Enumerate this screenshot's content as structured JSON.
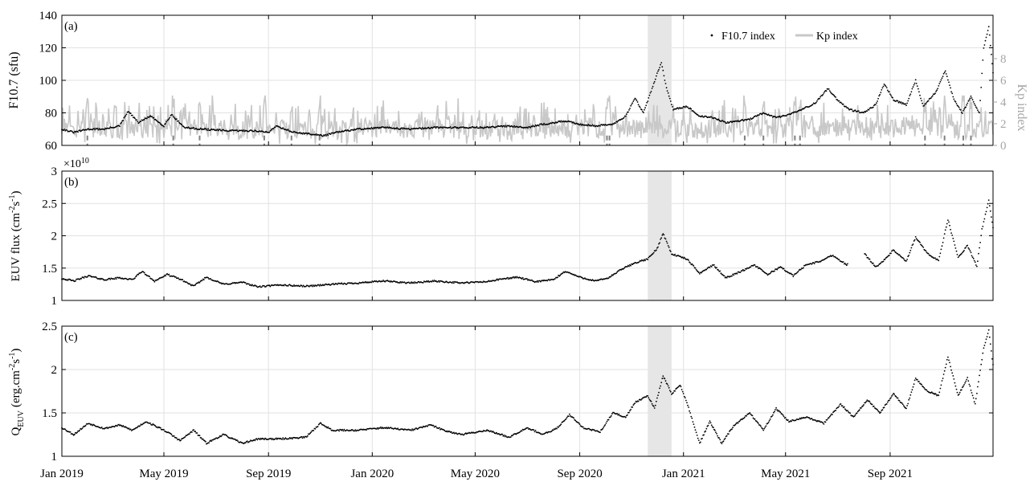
{
  "colors": {
    "marker": "#000000",
    "kp": "#c8c8c8",
    "kp_axis": "#a6a6a6",
    "event": "#808080",
    "shade": "#e6e6e6",
    "grid": "#e2e2e2"
  },
  "chart_data": [
    {
      "type": "scatter",
      "panel_label": "(a)",
      "ylabel": "F10.7 (sfu)",
      "ylabel_right": "Kp index",
      "ylim": [
        60,
        140
      ],
      "y_ticks": [
        60,
        80,
        100,
        120,
        140
      ],
      "ylim_right": [
        0,
        12
      ],
      "y_ticks_right": [
        0,
        2,
        4,
        6,
        8
      ],
      "x_range": [
        "2019-01-01",
        "2021-12-31"
      ],
      "grid": true,
      "legend_position": "top-right",
      "legend": [
        "F10.7 index",
        "Kp index"
      ],
      "shaded_interval": [
        "2020-11-20",
        "2020-12-18"
      ],
      "series": [
        {
          "name": "F10.7 index",
          "style": "dots",
          "points": [
            [
              "2019-01-01",
              70
            ],
            [
              "2019-01-15",
              68
            ],
            [
              "2019-02-01",
              70
            ],
            [
              "2019-02-20",
              70
            ],
            [
              "2019-03-10",
              72
            ],
            [
              "2019-03-20",
              81
            ],
            [
              "2019-04-01",
              74
            ],
            [
              "2019-04-15",
              78
            ],
            [
              "2019-05-01",
              72
            ],
            [
              "2019-05-10",
              79
            ],
            [
              "2019-05-25",
              71
            ],
            [
              "2019-06-15",
              70
            ],
            [
              "2019-07-15",
              69
            ],
            [
              "2019-08-15",
              69
            ],
            [
              "2019-09-01",
              68
            ],
            [
              "2019-09-10",
              72
            ],
            [
              "2019-10-01",
              68
            ],
            [
              "2019-10-20",
              67
            ],
            [
              "2019-11-05",
              66
            ],
            [
              "2019-11-20",
              68
            ],
            [
              "2019-12-15",
              70
            ],
            [
              "2020-01-15",
              71
            ],
            [
              "2020-02-15",
              70
            ],
            [
              "2020-03-15",
              71
            ],
            [
              "2020-04-15",
              71
            ],
            [
              "2020-05-15",
              71
            ],
            [
              "2020-06-10",
              72
            ],
            [
              "2020-07-01",
              71
            ],
            [
              "2020-07-20",
              73
            ],
            [
              "2020-08-15",
              75
            ],
            [
              "2020-09-01",
              73
            ],
            [
              "2020-09-20",
              72
            ],
            [
              "2020-10-10",
              73
            ],
            [
              "2020-10-25",
              78
            ],
            [
              "2020-11-05",
              89
            ],
            [
              "2020-11-15",
              80
            ],
            [
              "2020-11-25",
              95
            ],
            [
              "2020-12-01",
              104
            ],
            [
              "2020-12-06",
              111
            ],
            [
              "2020-12-12",
              95
            ],
            [
              "2020-12-20",
              82
            ],
            [
              "2021-01-05",
              84
            ],
            [
              "2021-01-20",
              78
            ],
            [
              "2021-02-05",
              77
            ],
            [
              "2021-02-20",
              74
            ],
            [
              "2021-03-05",
              75
            ],
            [
              "2021-03-20",
              76
            ],
            [
              "2021-04-05",
              80
            ],
            [
              "2021-04-20",
              77
            ],
            [
              "2021-05-05",
              79
            ],
            [
              "2021-05-20",
              82
            ],
            [
              "2021-06-05",
              86
            ],
            [
              "2021-06-20",
              95
            ],
            [
              "2021-07-01",
              88
            ],
            [
              "2021-07-15",
              82
            ],
            [
              "2021-08-01",
              80
            ],
            [
              "2021-08-15",
              85
            ],
            [
              "2021-08-25",
              98
            ],
            [
              "2021-09-05",
              88
            ],
            [
              "2021-09-20",
              85
            ],
            [
              "2021-10-01",
              100
            ],
            [
              "2021-10-10",
              84
            ],
            [
              "2021-10-25",
              93
            ],
            [
              "2021-11-05",
              106
            ],
            [
              "2021-11-15",
              88
            ],
            [
              "2021-11-25",
              80
            ],
            [
              "2021-12-05",
              90
            ],
            [
              "2021-12-15",
              80
            ],
            [
              "2021-12-20",
              120
            ],
            [
              "2021-12-26",
              133
            ],
            [
              "2021-12-31",
              105
            ]
          ]
        },
        {
          "name": "Kp index",
          "style": "line",
          "axis": "right",
          "baseline": 1.2,
          "amplitude": 1.3,
          "events": [
            "2019-01-31",
            "2019-05-12",
            "2019-06-12",
            "2019-08-27",
            "2019-09-28",
            "2019-10-31",
            "2020-10-03",
            "2020-10-06",
            "2021-03-14",
            "2021-04-05",
            "2021-05-12",
            "2021-05-18",
            "2021-10-12",
            "2021-11-04",
            "2021-11-26",
            "2021-12-05"
          ]
        }
      ]
    },
    {
      "type": "scatter",
      "panel_label": "(b)",
      "ylabel": "EUV flux (cm",
      "ylabel_exponents": [
        "-2",
        "-1"
      ],
      "ylabel_units": [
        "s",
        ")"
      ],
      "multiplier_base": "×10",
      "multiplier_exponent": "10",
      "ylim": [
        1,
        3
      ],
      "y_ticks": [
        1,
        1.5,
        2,
        2.5,
        3
      ],
      "x_range": [
        "2019-01-01",
        "2021-12-31"
      ],
      "grid": true,
      "shaded_interval": [
        "2020-11-20",
        "2020-12-18"
      ],
      "gap": [
        "2021-07-13",
        "2021-08-02"
      ],
      "series": [
        {
          "name": "EUV flux",
          "style": "dots",
          "points": [
            [
              "2019-01-01",
              1.34
            ],
            [
              "2019-01-15",
              1.3
            ],
            [
              "2019-02-01",
              1.38
            ],
            [
              "2019-02-20",
              1.32
            ],
            [
              "2019-03-10",
              1.35
            ],
            [
              "2019-03-25",
              1.32
            ],
            [
              "2019-04-05",
              1.45
            ],
            [
              "2019-04-20",
              1.3
            ],
            [
              "2019-05-05",
              1.4
            ],
            [
              "2019-05-20",
              1.33
            ],
            [
              "2019-06-05",
              1.22
            ],
            [
              "2019-06-20",
              1.36
            ],
            [
              "2019-07-10",
              1.25
            ],
            [
              "2019-08-01",
              1.28
            ],
            [
              "2019-08-20",
              1.21
            ],
            [
              "2019-09-15",
              1.24
            ],
            [
              "2019-10-15",
              1.22
            ],
            [
              "2019-11-15",
              1.25
            ],
            [
              "2019-12-15",
              1.27
            ],
            [
              "2020-01-15",
              1.3
            ],
            [
              "2020-02-15",
              1.27
            ],
            [
              "2020-03-15",
              1.3
            ],
            [
              "2020-04-15",
              1.27
            ],
            [
              "2020-05-15",
              1.29
            ],
            [
              "2020-06-01",
              1.33
            ],
            [
              "2020-06-20",
              1.36
            ],
            [
              "2020-07-10",
              1.29
            ],
            [
              "2020-08-01",
              1.32
            ],
            [
              "2020-08-15",
              1.45
            ],
            [
              "2020-09-01",
              1.36
            ],
            [
              "2020-09-20",
              1.3
            ],
            [
              "2020-10-05",
              1.35
            ],
            [
              "2020-10-20",
              1.48
            ],
            [
              "2020-11-05",
              1.58
            ],
            [
              "2020-11-20",
              1.64
            ],
            [
              "2020-12-01",
              1.8
            ],
            [
              "2020-12-08",
              2.04
            ],
            [
              "2020-12-18",
              1.72
            ],
            [
              "2021-01-05",
              1.64
            ],
            [
              "2021-01-20",
              1.42
            ],
            [
              "2021-02-05",
              1.55
            ],
            [
              "2021-02-20",
              1.35
            ],
            [
              "2021-03-10",
              1.45
            ],
            [
              "2021-03-25",
              1.55
            ],
            [
              "2021-04-10",
              1.4
            ],
            [
              "2021-04-25",
              1.52
            ],
            [
              "2021-05-10",
              1.38
            ],
            [
              "2021-05-25",
              1.55
            ],
            [
              "2021-06-10",
              1.6
            ],
            [
              "2021-06-25",
              1.7
            ],
            [
              "2021-07-12",
              1.55
            ],
            [
              "2021-08-02",
              1.72
            ],
            [
              "2021-08-15",
              1.52
            ],
            [
              "2021-08-25",
              1.62
            ],
            [
              "2021-09-05",
              1.78
            ],
            [
              "2021-09-20",
              1.6
            ],
            [
              "2021-10-01",
              1.98
            ],
            [
              "2021-10-15",
              1.72
            ],
            [
              "2021-10-28",
              1.62
            ],
            [
              "2021-11-08",
              2.25
            ],
            [
              "2021-11-20",
              1.66
            ],
            [
              "2021-12-01",
              1.85
            ],
            [
              "2021-12-12",
              1.52
            ],
            [
              "2021-12-18",
              2.1
            ],
            [
              "2021-12-26",
              2.55
            ],
            [
              "2021-12-31",
              2.12
            ]
          ]
        }
      ]
    },
    {
      "type": "scatter",
      "panel_label": "(c)",
      "ylabel_base": "Q",
      "ylabel_subscript": "EUV",
      "ylabel_units": "(erg.cm",
      "ylabel_exponents": [
        "-2",
        "-1"
      ],
      "ylabel_units_tail": [
        "s",
        ")"
      ],
      "ylim": [
        1,
        2.5
      ],
      "y_ticks": [
        1,
        1.5,
        2,
        2.5
      ],
      "x_range": [
        "2019-01-01",
        "2021-12-31"
      ],
      "grid": true,
      "shaded_interval": [
        "2020-11-20",
        "2020-12-18"
      ],
      "x_ticks": [
        {
          "date": "2019-01-01",
          "label": "Jan 2019"
        },
        {
          "date": "2019-05-01",
          "label": "May 2019"
        },
        {
          "date": "2019-09-01",
          "label": "Sep 2019"
        },
        {
          "date": "2020-01-01",
          "label": "Jan 2020"
        },
        {
          "date": "2020-05-01",
          "label": "May 2020"
        },
        {
          "date": "2020-09-01",
          "label": "Sep 2020"
        },
        {
          "date": "2021-01-01",
          "label": "Jan 2021"
        },
        {
          "date": "2021-05-01",
          "label": "May 2021"
        },
        {
          "date": "2021-09-01",
          "label": "Sep 2021"
        }
      ],
      "series": [
        {
          "name": "Q_EUV",
          "style": "dots",
          "points": [
            [
              "2019-01-01",
              1.33
            ],
            [
              "2019-01-15",
              1.25
            ],
            [
              "2019-02-01",
              1.38
            ],
            [
              "2019-02-20",
              1.32
            ],
            [
              "2019-03-10",
              1.36
            ],
            [
              "2019-03-25",
              1.3
            ],
            [
              "2019-04-10",
              1.4
            ],
            [
              "2019-04-25",
              1.33
            ],
            [
              "2019-05-05",
              1.28
            ],
            [
              "2019-05-20",
              1.18
            ],
            [
              "2019-06-05",
              1.3
            ],
            [
              "2019-06-20",
              1.15
            ],
            [
              "2019-07-10",
              1.25
            ],
            [
              "2019-08-01",
              1.15
            ],
            [
              "2019-08-20",
              1.2
            ],
            [
              "2019-09-15",
              1.2
            ],
            [
              "2019-10-15",
              1.22
            ],
            [
              "2019-11-01",
              1.38
            ],
            [
              "2019-11-15",
              1.3
            ],
            [
              "2019-12-15",
              1.3
            ],
            [
              "2020-01-15",
              1.33
            ],
            [
              "2020-02-15",
              1.3
            ],
            [
              "2020-03-10",
              1.36
            ],
            [
              "2020-03-25",
              1.3
            ],
            [
              "2020-04-15",
              1.25
            ],
            [
              "2020-05-15",
              1.3
            ],
            [
              "2020-06-10",
              1.22
            ],
            [
              "2020-07-01",
              1.33
            ],
            [
              "2020-07-20",
              1.25
            ],
            [
              "2020-08-05",
              1.32
            ],
            [
              "2020-08-20",
              1.48
            ],
            [
              "2020-09-05",
              1.33
            ],
            [
              "2020-09-25",
              1.28
            ],
            [
              "2020-10-10",
              1.5
            ],
            [
              "2020-10-25",
              1.45
            ],
            [
              "2020-11-05",
              1.62
            ],
            [
              "2020-11-20",
              1.7
            ],
            [
              "2020-11-28",
              1.55
            ],
            [
              "2020-12-08",
              1.93
            ],
            [
              "2020-12-18",
              1.72
            ],
            [
              "2020-12-28",
              1.82
            ],
            [
              "2021-01-05",
              1.62
            ],
            [
              "2021-01-20",
              1.15
            ],
            [
              "2021-02-01",
              1.4
            ],
            [
              "2021-02-15",
              1.15
            ],
            [
              "2021-03-01",
              1.35
            ],
            [
              "2021-03-20",
              1.5
            ],
            [
              "2021-04-05",
              1.3
            ],
            [
              "2021-04-20",
              1.55
            ],
            [
              "2021-05-05",
              1.4
            ],
            [
              "2021-05-25",
              1.45
            ],
            [
              "2021-06-15",
              1.38
            ],
            [
              "2021-07-05",
              1.6
            ],
            [
              "2021-07-20",
              1.45
            ],
            [
              "2021-08-05",
              1.65
            ],
            [
              "2021-08-20",
              1.5
            ],
            [
              "2021-09-05",
              1.72
            ],
            [
              "2021-09-20",
              1.55
            ],
            [
              "2021-10-01",
              1.9
            ],
            [
              "2021-10-15",
              1.75
            ],
            [
              "2021-10-28",
              1.7
            ],
            [
              "2021-11-08",
              2.15
            ],
            [
              "2021-11-20",
              1.7
            ],
            [
              "2021-12-01",
              1.9
            ],
            [
              "2021-12-10",
              1.6
            ],
            [
              "2021-12-20",
              2.25
            ],
            [
              "2021-12-26",
              2.45
            ],
            [
              "2021-12-31",
              2.05
            ]
          ]
        }
      ]
    }
  ]
}
